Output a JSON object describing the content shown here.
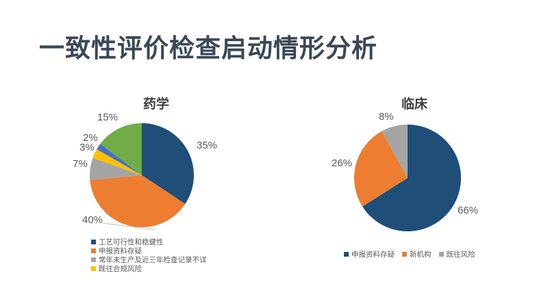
{
  "slide": {
    "title": "一致性评价检查启动情形分析"
  },
  "colors": {
    "title_text": "#3A4756",
    "label_text": "#595959",
    "navy": "#1F4E79",
    "orange": "#ED7D31",
    "gray": "#A5A5A5",
    "yellow": "#FFC000",
    "blue": "#4472C4",
    "green": "#70AD47"
  },
  "chart_data": [
    {
      "type": "pie",
      "title": "药学",
      "start_angle_deg": 0,
      "direction": "clockwise",
      "slices": [
        {
          "name": "工艺可行性和稳健性",
          "value": 35,
          "pct": "35%",
          "color": "#1F4E79"
        },
        {
          "name": "申报资料存疑",
          "value": 40,
          "pct": "40%",
          "color": "#ED7D31"
        },
        {
          "name": "常年未生产及近三年检查记录不详",
          "value": 7,
          "pct": "7%",
          "color": "#A5A5A5"
        },
        {
          "name": "既往合规风险",
          "value": 3,
          "pct": "3%",
          "color": "#FFC000"
        },
        {
          "name": "",
          "value": 2,
          "pct": "2%",
          "color": "#4472C4"
        },
        {
          "name": "",
          "value": 15,
          "pct": "15%",
          "color": "#70AD47"
        }
      ],
      "legend_position": "bottom-left-vertical",
      "legend": [
        {
          "label": "工艺可行性和稳健性",
          "color": "#1F4E79"
        },
        {
          "label": "申报资料存疑",
          "color": "#ED7D31"
        },
        {
          "label": "常年未生产及近三年检查记录不详",
          "color": "#A5A5A5"
        },
        {
          "label": "既往合规风险",
          "color": "#FFC000"
        }
      ]
    },
    {
      "type": "pie",
      "title": "临床",
      "start_angle_deg": 0,
      "direction": "clockwise",
      "slices": [
        {
          "name": "申报资料存疑",
          "value": 66,
          "pct": "66%",
          "color": "#1F4E79"
        },
        {
          "name": "新机构",
          "value": 26,
          "pct": "26%",
          "color": "#ED7D31"
        },
        {
          "name": "既往风险",
          "value": 8,
          "pct": "8%",
          "color": "#A5A5A5"
        }
      ],
      "legend_position": "bottom-horizontal",
      "legend": [
        {
          "label": "申报资料存疑",
          "color": "#1F4E79"
        },
        {
          "label": "新机构",
          "color": "#ED7D31"
        },
        {
          "label": "既往风险",
          "color": "#A5A5A5"
        }
      ]
    }
  ]
}
